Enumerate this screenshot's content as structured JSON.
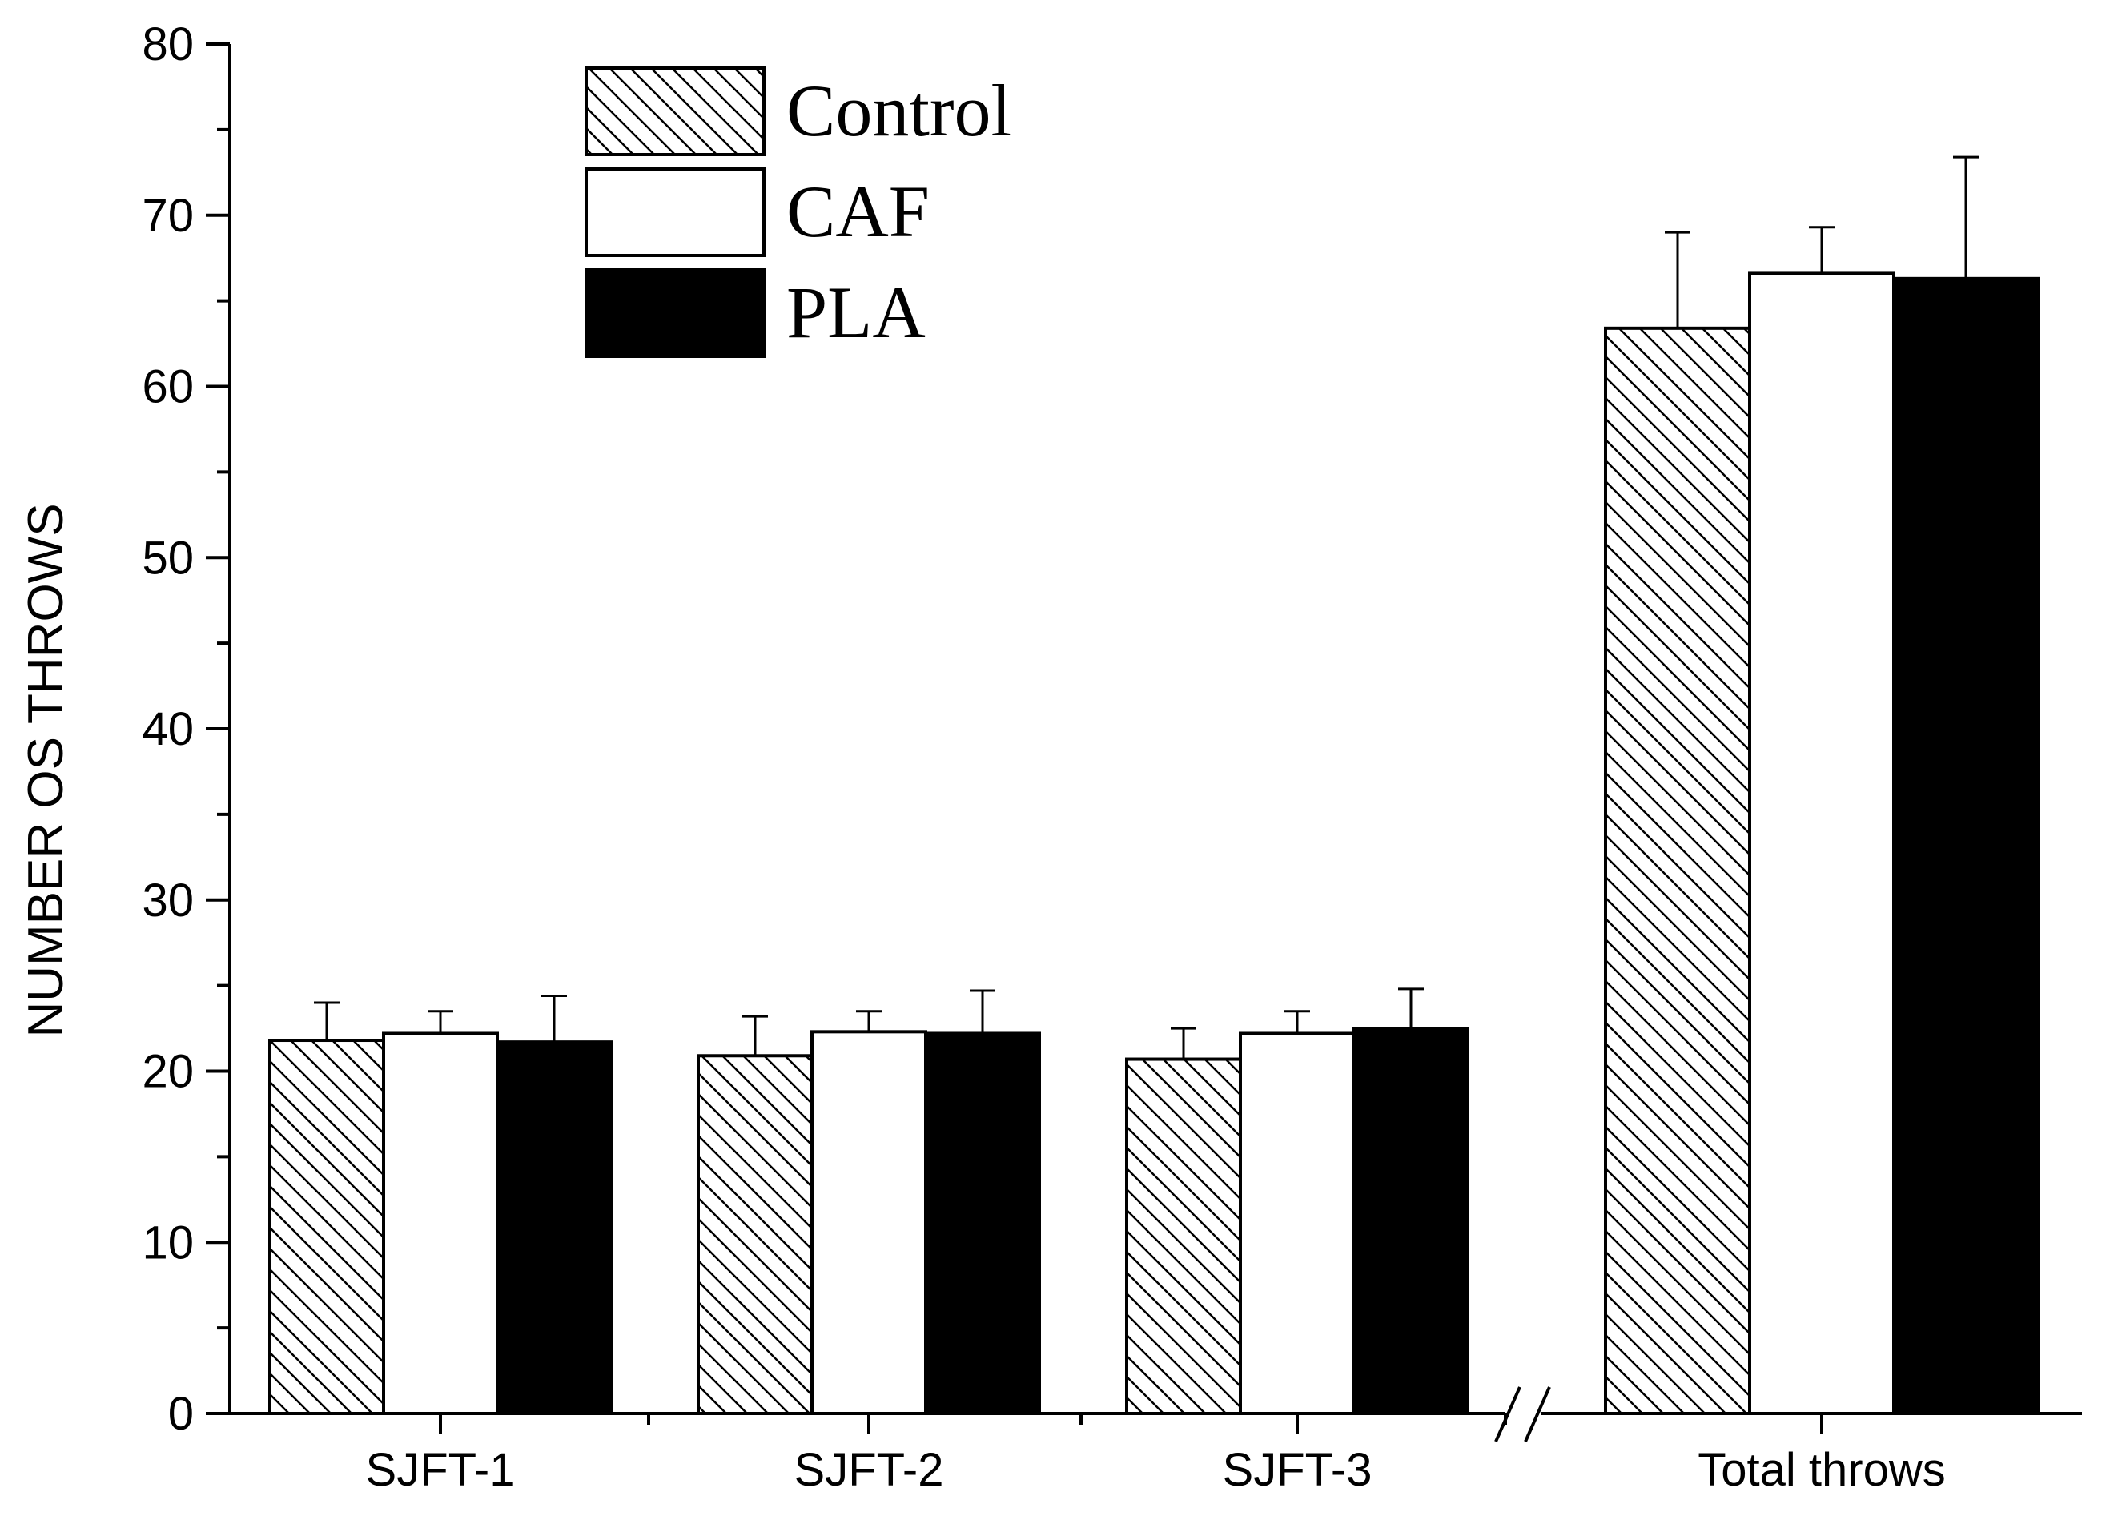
{
  "chart_data": {
    "type": "bar",
    "title": "",
    "xlabel": "",
    "ylabel": "NUMBER OS THROWS",
    "ylim": [
      0,
      80
    ],
    "yticks": [
      "0",
      "10",
      "20",
      "30",
      "40",
      "50",
      "60",
      "70",
      "80"
    ],
    "categories": [
      "SJFT-1",
      "SJFT-2",
      "SJFT-3",
      "Total throws"
    ],
    "axis_break": "between SJFT-3 and Total throws",
    "legend_position": "top-left",
    "series": [
      {
        "name": "Control",
        "fill": "hatched",
        "values": [
          21.8,
          20.9,
          20.7,
          63.4
        ],
        "errors": [
          2.2,
          2.3,
          1.8,
          5.6
        ]
      },
      {
        "name": "CAF",
        "fill": "white",
        "values": [
          22.2,
          22.3,
          22.2,
          66.6
        ],
        "errors": [
          1.3,
          1.2,
          1.3,
          2.7
        ]
      },
      {
        "name": "PLA",
        "fill": "black",
        "values": [
          21.7,
          22.2,
          22.5,
          66.3
        ],
        "errors": [
          2.7,
          2.5,
          2.3,
          7.1
        ]
      }
    ],
    "colors": {
      "ink": "#000000",
      "background": "#ffffff"
    }
  }
}
